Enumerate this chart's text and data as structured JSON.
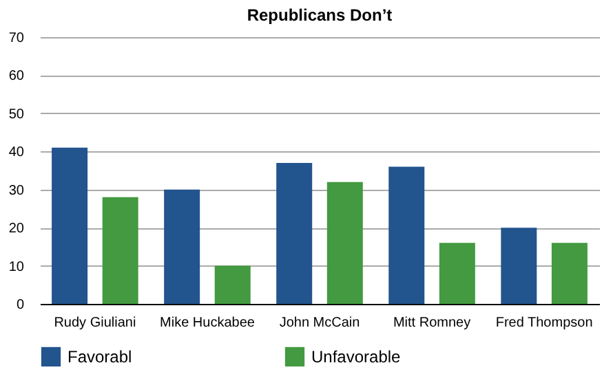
{
  "chart_data": {
    "type": "bar",
    "title": "Republicans Don’t",
    "categories": [
      "Rudy Giuliani",
      "Mike Huckabee",
      "John McCain",
      "Mitt Romney",
      "Fred Thompson"
    ],
    "series": [
      {
        "name": "Favorabl",
        "color": "#22548e",
        "values": [
          41,
          30,
          37,
          36,
          20
        ]
      },
      {
        "name": "Unfavorable",
        "color": "#439a40",
        "values": [
          28,
          10,
          32,
          16,
          16
        ]
      }
    ],
    "ylim": [
      0,
      70
    ],
    "yticks": [
      0,
      10,
      20,
      30,
      40,
      50,
      60,
      70
    ],
    "grid": "y",
    "legend": "bottom"
  }
}
